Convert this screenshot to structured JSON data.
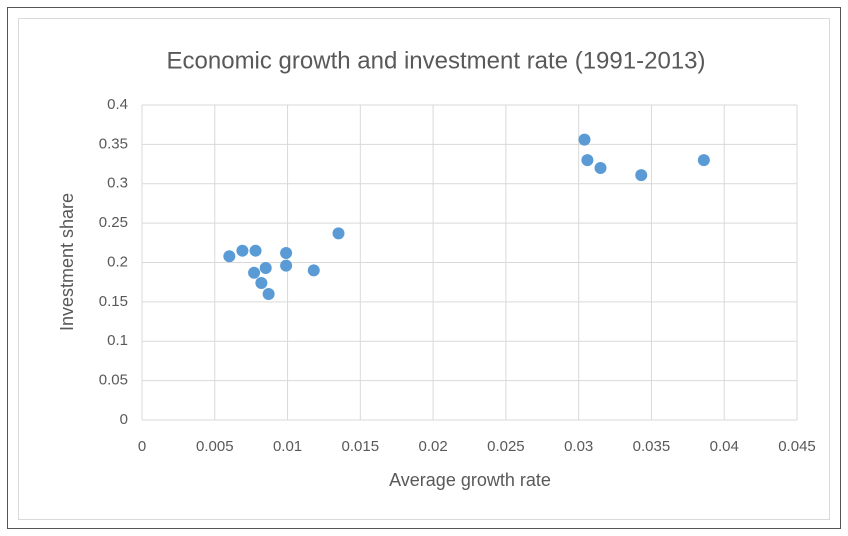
{
  "chart_data": {
    "type": "scatter",
    "title": "Economic growth and investment rate (1991-2013)",
    "x_label": "Average growth rate",
    "y_label": "Investment share",
    "series": [
      {
        "color": "#5b9bd5",
        "x": [
          0.006,
          0.0069,
          0.0078,
          0.0077,
          0.0082,
          0.0085,
          0.0087,
          0.0099,
          0.0099,
          0.0118,
          0.0135,
          0.0304,
          0.0306,
          0.0315,
          0.0343,
          0.0386
        ],
        "values": [
          0.208,
          0.215,
          0.215,
          0.187,
          0.174,
          0.193,
          0.16,
          0.212,
          0.196,
          0.19,
          0.237,
          0.356,
          0.33,
          0.32,
          0.311,
          0.33
        ]
      }
    ],
    "xlim": [
      0,
      0.045
    ],
    "xticks": [
      0,
      0.005,
      0.01,
      0.015,
      0.02,
      0.025,
      0.03,
      0.035,
      0.04,
      0.045
    ],
    "ylim": [
      0,
      0.4
    ],
    "yticks": [
      0,
      0.05,
      0.1,
      0.15,
      0.2,
      0.25,
      0.3,
      0.35,
      0.4
    ],
    "grid": true
  }
}
